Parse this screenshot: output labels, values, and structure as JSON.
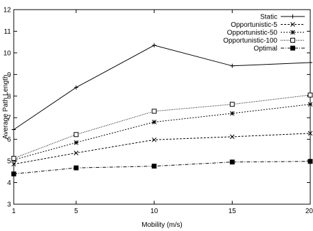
{
  "chart_data": {
    "type": "line",
    "title": "",
    "xlabel": "Mobility (m/s)",
    "ylabel": "Average Path Length",
    "x": [
      1,
      5,
      10,
      15,
      20
    ],
    "xticks": [
      1,
      5,
      10,
      15,
      20
    ],
    "xlim": [
      1,
      20
    ],
    "yticks": [
      3,
      4,
      5,
      6,
      7,
      8,
      9,
      10,
      11,
      12
    ],
    "ylim": [
      3,
      12
    ],
    "grid": false,
    "legend_position": "top-right",
    "series": [
      {
        "name": "Static",
        "marker": "plus",
        "dash": "solid",
        "values": [
          6.45,
          8.4,
          10.35,
          9.4,
          9.55
        ]
      },
      {
        "name": "Opportunistic-5",
        "marker": "x",
        "dash": "dashed",
        "values": [
          4.85,
          5.37,
          5.98,
          6.12,
          6.28
        ]
      },
      {
        "name": "Opportunistic-50",
        "marker": "asterisk",
        "dash": "dotted",
        "values": [
          5.05,
          5.85,
          6.8,
          7.2,
          7.62
        ]
      },
      {
        "name": "Opportunistic-100",
        "marker": "open-square",
        "dash": "fine-dotted",
        "values": [
          5.12,
          6.22,
          7.3,
          7.62,
          8.05
        ]
      },
      {
        "name": "Optimal",
        "marker": "filled-square",
        "dash": "dash-dot",
        "values": [
          4.4,
          4.68,
          4.76,
          4.95,
          4.98
        ]
      }
    ]
  }
}
